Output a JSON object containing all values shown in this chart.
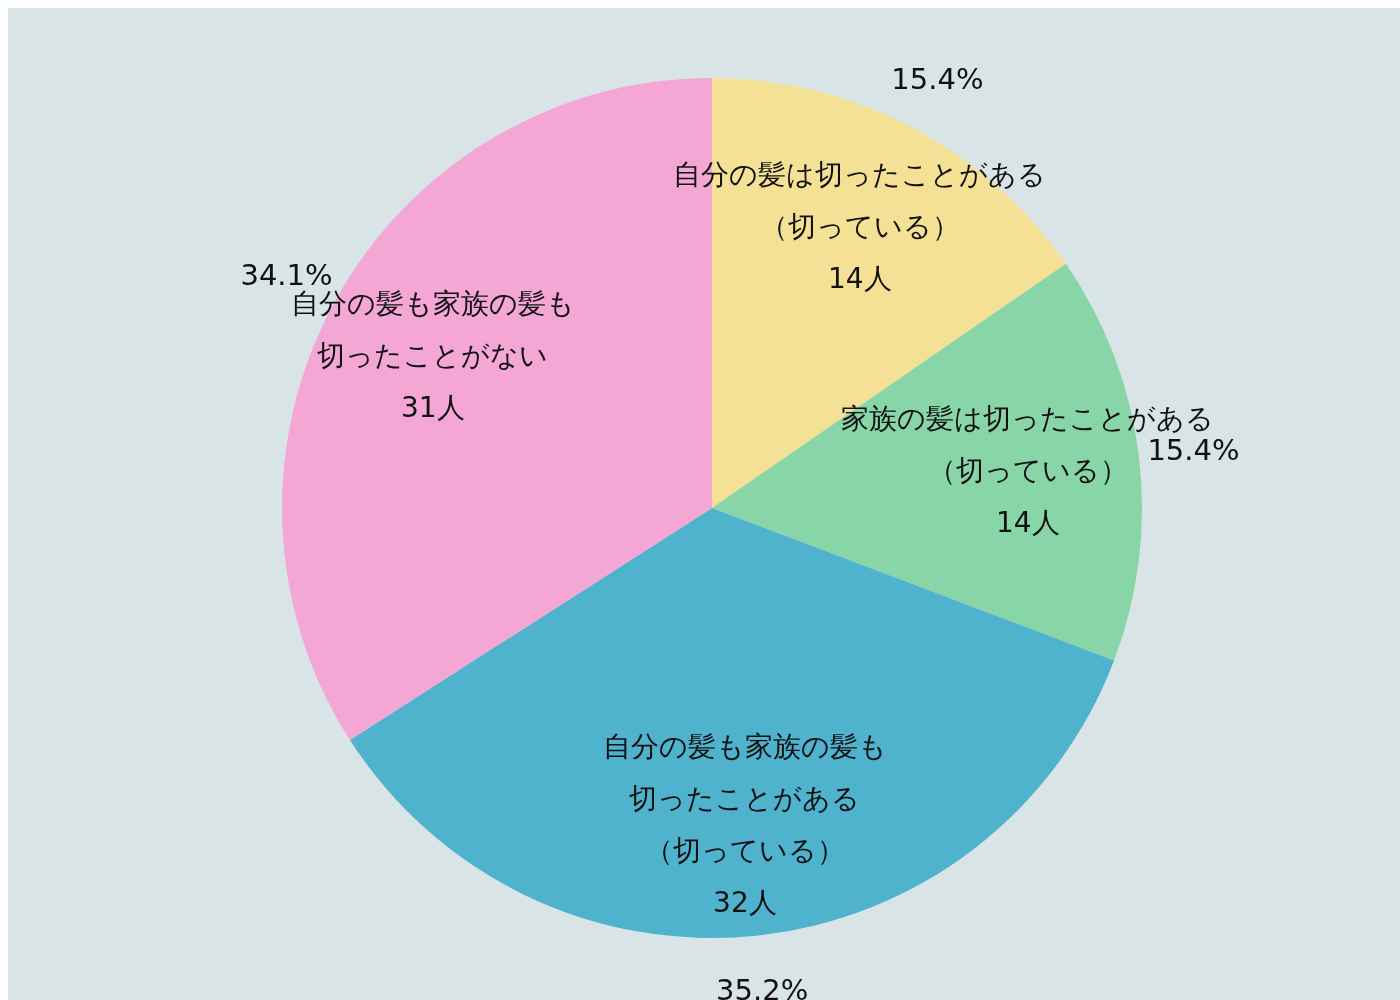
{
  "chart_data": {
    "type": "pie",
    "categories": [
      "自分の髪は切ったことがある（切っている）",
      "家族の髪は切ったことがある（切っている）",
      "自分の髪も家族の髪も切ったことがある（切っている）",
      "自分の髪も家族の髪も切ったことがない"
    ],
    "values": [
      14,
      14,
      32,
      31
    ],
    "value_labels": [
      "14人",
      "14人",
      "32人",
      "31人"
    ],
    "colors": [
      "#f5e196",
      "#88d5a8",
      "#4fb3ce",
      "#f4a6d5"
    ],
    "annotations": [
      "15.4%",
      "15.4%",
      "35.2%",
      "34.1%"
    ]
  }
}
